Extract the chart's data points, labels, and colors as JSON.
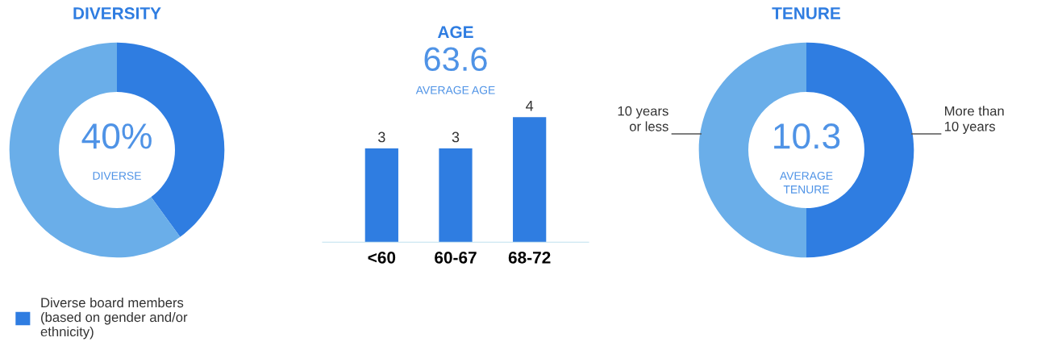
{
  "chart_data": [
    {
      "type": "donut",
      "title": "DIVERSITY",
      "categories": [
        "Diverse board members\n(based on gender and/or\nethnicity)",
        null
      ],
      "values": [
        40,
        60
      ],
      "colors": [
        "#2f7de1",
        "#6aaee9"
      ],
      "annotations": [
        "40%",
        "DIVERSE"
      ],
      "legend": "bottom"
    },
    {
      "type": "bar",
      "title": "AGE",
      "categories": [
        "<60",
        "60-67",
        "68-72"
      ],
      "values": [
        3,
        3,
        4
      ],
      "color": "#2f7de1",
      "data_labels": true,
      "tick_labels": "x",
      "annotations": [
        "63.6",
        "AVERAGE AGE"
      ]
    },
    {
      "type": "donut",
      "title": "TENURE",
      "categories": [
        "More than\n10 years",
        "10 years\nor less"
      ],
      "values": [
        50,
        50
      ],
      "colors": [
        "#2f7de1",
        "#6aaee9"
      ],
      "annotations": [
        "10.3",
        "AVERAGE\nTENURE"
      ]
    }
  ]
}
